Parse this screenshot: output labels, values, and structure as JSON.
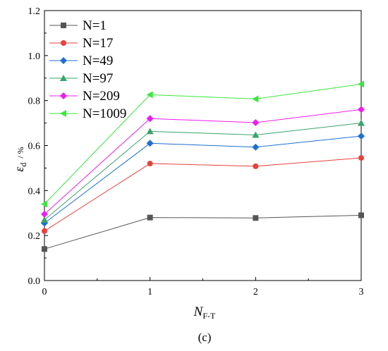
{
  "chart_data": {
    "type": "line",
    "x": [
      0,
      1,
      2,
      3
    ],
    "xlim": [
      0,
      3
    ],
    "ylim": [
      0,
      1.2
    ],
    "xticks": [
      "0",
      "1",
      "2",
      "3"
    ],
    "yticks": [
      "0.0",
      "0.2",
      "0.4",
      "0.6",
      "0.8",
      "1.0",
      "1.2"
    ],
    "xlabel": {
      "main": "N",
      "sub": "F-T"
    },
    "ylabel": {
      "main": "ε",
      "sub": "d",
      "unit": "/ %"
    },
    "caption": "(c)",
    "grid": false,
    "legend_position": "top-left",
    "series": [
      {
        "name": "N=1",
        "color": "#555555",
        "marker": "square",
        "values": [
          0.14,
          0.28,
          0.278,
          0.29
        ]
      },
      {
        "name": "N=17",
        "color": "#e8413c",
        "marker": "circle",
        "values": [
          0.22,
          0.52,
          0.508,
          0.545
        ]
      },
      {
        "name": "N=49",
        "color": "#1f6fd1",
        "marker": "diamond",
        "values": [
          0.255,
          0.61,
          0.593,
          0.642
        ]
      },
      {
        "name": "N=97",
        "color": "#3aa36a",
        "marker": "triangle-up",
        "values": [
          0.27,
          0.663,
          0.647,
          0.7
        ]
      },
      {
        "name": "N=209",
        "color": "#ee1df0",
        "marker": "diamond",
        "values": [
          0.295,
          0.72,
          0.702,
          0.76
        ]
      },
      {
        "name": "N=1009",
        "color": "#39e83a",
        "marker": "triangle-left",
        "values": [
          0.34,
          0.826,
          0.807,
          0.873
        ]
      }
    ]
  }
}
